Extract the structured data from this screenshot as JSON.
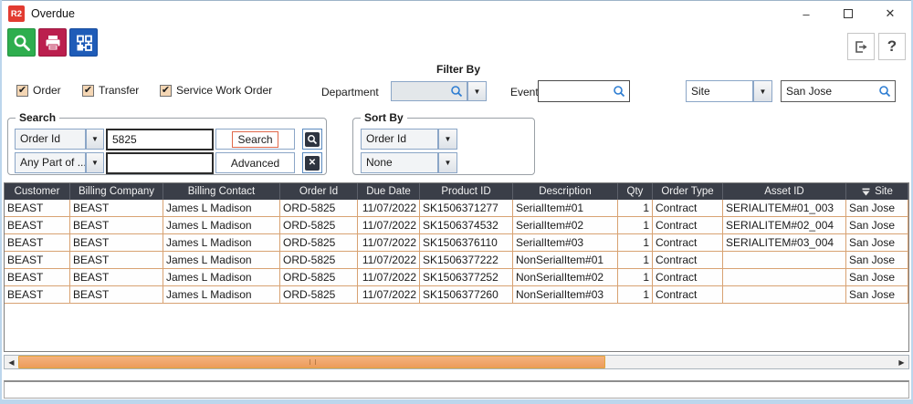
{
  "window": {
    "logo_text": "R2",
    "title": "Overdue"
  },
  "titlebar": {
    "minimize": "–",
    "close": "✕"
  },
  "toolbar": {
    "icons": [
      "search-icon",
      "print-icon",
      "flowchart-icon"
    ],
    "help_label": "?"
  },
  "filters": {
    "checkboxes": [
      {
        "label": "Order",
        "checked": true
      },
      {
        "label": "Transfer",
        "checked": true
      },
      {
        "label": "Service Work Order",
        "checked": true
      }
    ],
    "check_glyph": "✔",
    "filter_by_label": "Filter By",
    "department_label": "Department",
    "department_value": "",
    "event_label": "Event",
    "event_value": "",
    "site_selected": "Site",
    "site_search_value": "San Jose"
  },
  "search_group": {
    "title": "Search",
    "row1": {
      "field_type": "Order Id",
      "value": "5825",
      "button": "Search"
    },
    "row2": {
      "field_type": "Any Part of ...",
      "value": "",
      "button": "Advanced"
    },
    "clear_glyph": "✕"
  },
  "sort_group": {
    "title": "Sort By",
    "primary": "Order Id",
    "secondary": "None"
  },
  "table": {
    "columns": [
      "Customer",
      "Billing Company",
      "Billing Contact",
      "Order Id",
      "Due Date",
      "Product ID",
      "Description",
      "Qty",
      "Order Type",
      "Asset ID",
      "Site"
    ],
    "sort_indicator_column": "Site",
    "rows": [
      [
        "BEAST",
        "BEAST",
        "James L Madison",
        "ORD-5825",
        "11/07/2022",
        "SK1506371277",
        "SerialItem#01",
        "1",
        "Contract",
        "SERIALITEM#01_003",
        "San Jose"
      ],
      [
        "BEAST",
        "BEAST",
        "James L Madison",
        "ORD-5825",
        "11/07/2022",
        "SK1506374532",
        "SerialItem#02",
        "1",
        "Contract",
        "SERIALITEM#02_004",
        "San Jose"
      ],
      [
        "BEAST",
        "BEAST",
        "James L Madison",
        "ORD-5825",
        "11/07/2022",
        "SK1506376110",
        "SerialItem#03",
        "1",
        "Contract",
        "SERIALITEM#03_004",
        "San Jose"
      ],
      [
        "BEAST",
        "BEAST",
        "James L Madison",
        "ORD-5825",
        "11/07/2022",
        "SK1506377222",
        "NonSerialItem#01",
        "1",
        "Contract",
        "",
        "San Jose"
      ],
      [
        "BEAST",
        "BEAST",
        "James L Madison",
        "ORD-5825",
        "11/07/2022",
        "SK1506377252",
        "NonSerialItem#02",
        "1",
        "Contract",
        "",
        "San Jose"
      ],
      [
        "BEAST",
        "BEAST",
        "James L Madison",
        "ORD-5825",
        "11/07/2022",
        "SK1506377260",
        "NonSerialItem#03",
        "1",
        "Contract",
        "",
        "San Jose"
      ]
    ]
  },
  "colors": {
    "toolbar_green": "#2eae4e",
    "toolbar_red": "#bb1f4e",
    "toolbar_blue": "#1f5cb8",
    "logo_red": "#e23b31",
    "header_bg": "#3a3e48",
    "grid_border": "#d8a272",
    "scrollbar_thumb": "#f0a567",
    "window_border": "#bcd6ec",
    "field_icon_blue": "#2d7dd2"
  }
}
